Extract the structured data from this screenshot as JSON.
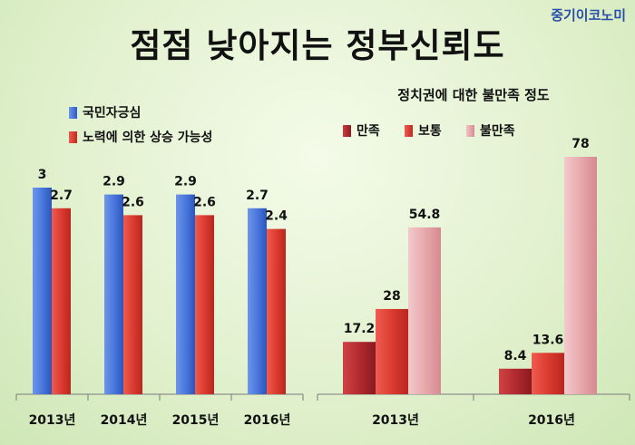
{
  "brand": "중기이코노미",
  "title": "점점 낮아지는 정부신뢰도",
  "chart_data": [
    {
      "type": "bar",
      "categories": [
        "2013년",
        "2014년",
        "2015년",
        "2016년"
      ],
      "series": [
        {
          "name": "국민자긍심",
          "values": [
            3,
            2.9,
            2.9,
            2.7
          ],
          "color": "#3f6fd6"
        },
        {
          "name": "노력에 의한 상승 가능성",
          "values": [
            2.7,
            2.6,
            2.6,
            2.4
          ],
          "color": "#d93a2e"
        }
      ],
      "ylim": [
        0,
        3
      ],
      "legend": "top-left"
    },
    {
      "type": "bar",
      "title": "정치권에 대한 불만족 정도",
      "categories": [
        "2013년",
        "2016년"
      ],
      "series": [
        {
          "name": "만족",
          "values": [
            17.2,
            8.4
          ],
          "color": "#c0272d"
        },
        {
          "name": "보통",
          "values": [
            28,
            13.6
          ],
          "color": "#dd3a32"
        },
        {
          "name": "불만족",
          "values": [
            54.8,
            78
          ],
          "color": "#e8a8ac"
        }
      ],
      "ylim": [
        0,
        78
      ],
      "legend": "top"
    }
  ]
}
